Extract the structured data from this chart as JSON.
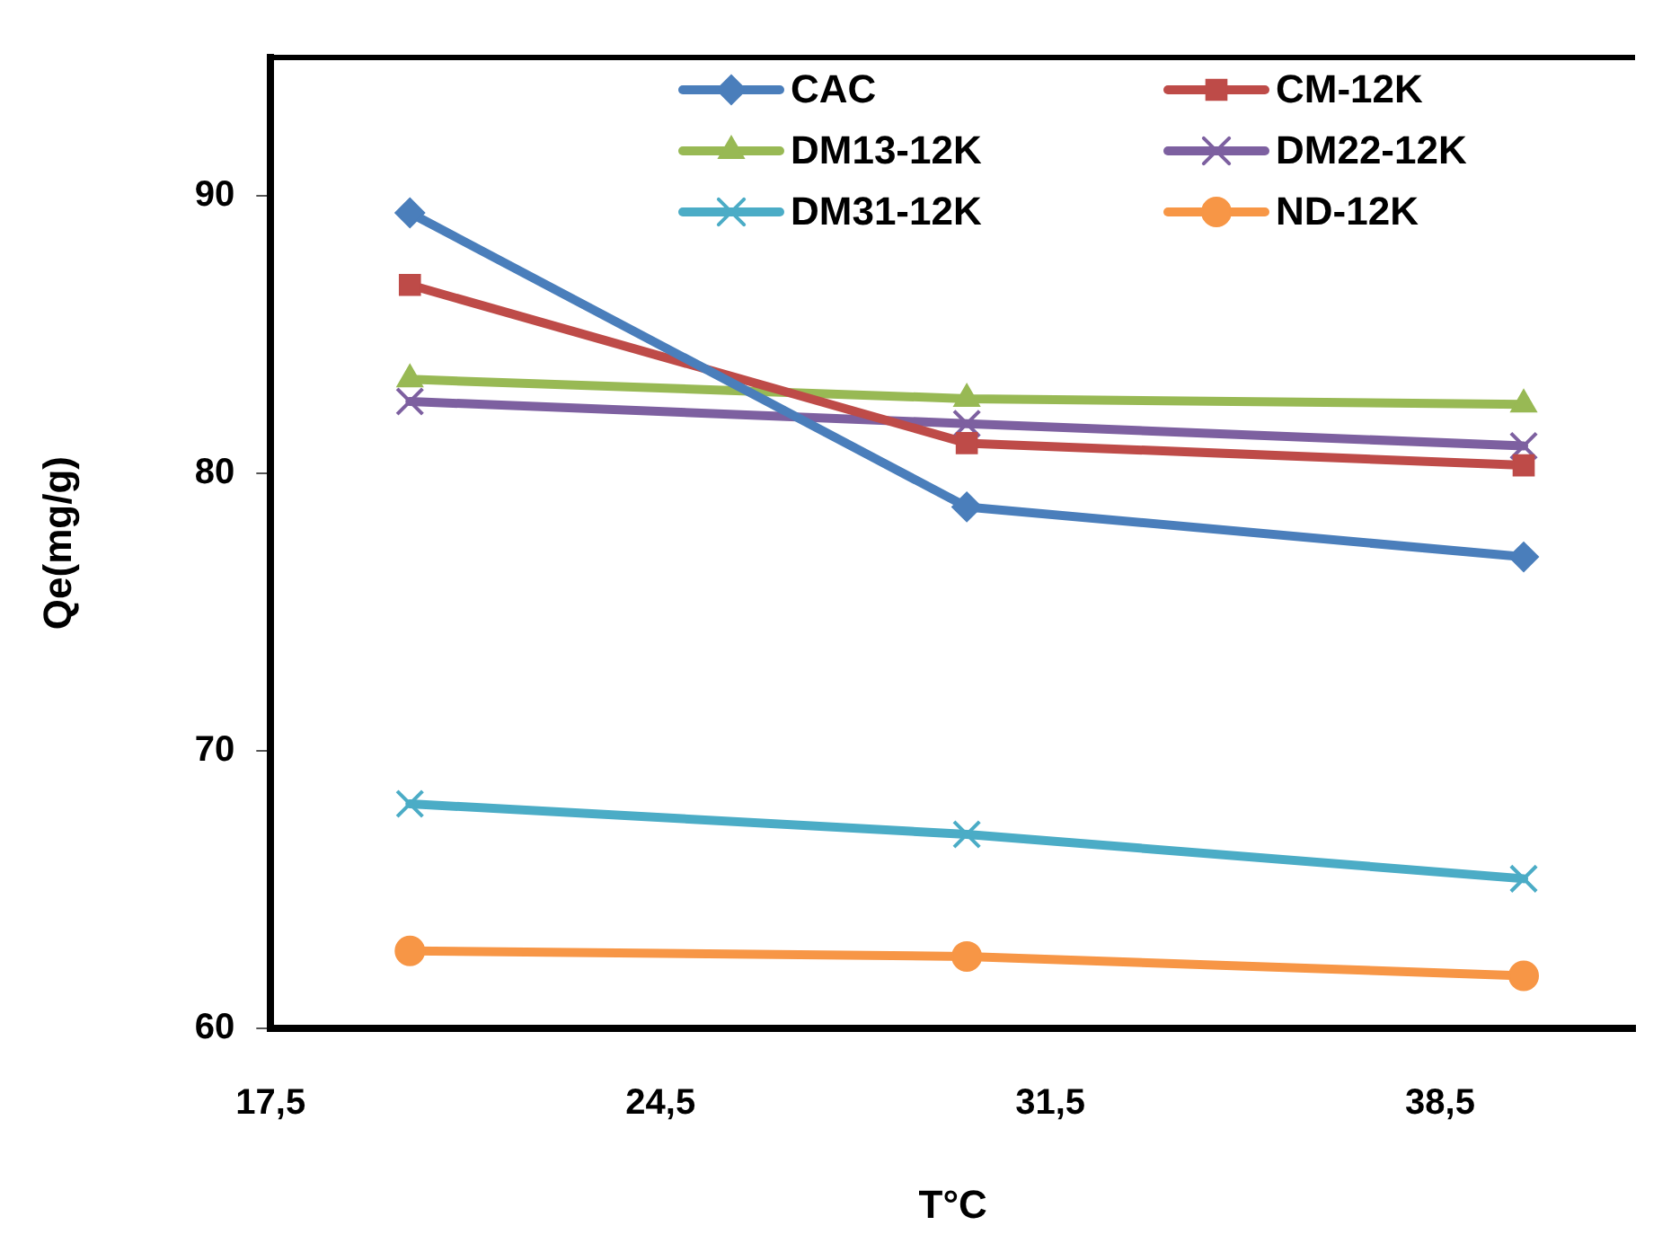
{
  "chart_data": {
    "type": "line",
    "xlabel": "T°C",
    "ylabel": "Qe(mg/g)",
    "x": [
      20,
      30,
      40
    ],
    "series": [
      {
        "name": "CAC",
        "color": "#4a7ebb",
        "marker": "diamond",
        "values": [
          89.4,
          78.8,
          77.0
        ]
      },
      {
        "name": "CM-12K",
        "color": "#be4b48",
        "marker": "square",
        "values": [
          86.8,
          81.1,
          80.3
        ]
      },
      {
        "name": "DM13-12K",
        "color": "#98b954",
        "marker": "triangle",
        "values": [
          83.4,
          82.7,
          82.5
        ]
      },
      {
        "name": "DM22-12K",
        "color": "#7d60a0",
        "marker": "cross",
        "values": [
          82.6,
          81.8,
          81.0
        ]
      },
      {
        "name": "DM31-12K",
        "color": "#4bacc6",
        "marker": "cross",
        "values": [
          68.1,
          67.0,
          65.4
        ]
      },
      {
        "name": "ND-12K",
        "color": "#f79646",
        "marker": "circle",
        "values": [
          62.8,
          62.6,
          61.9
        ]
      }
    ],
    "xlim": [
      17.5,
      42
    ],
    "xticks": [
      {
        "value": 17.5,
        "label": "17,5"
      },
      {
        "value": 24.5,
        "label": "24,5"
      },
      {
        "value": 31.5,
        "label": "31,5"
      },
      {
        "value": 38.5,
        "label": "38,5"
      }
    ],
    "ylim": [
      60,
      95
    ],
    "yticks": [
      60,
      70,
      80,
      90
    ],
    "grid": false,
    "legend": "top right",
    "line_style": "solid"
  }
}
